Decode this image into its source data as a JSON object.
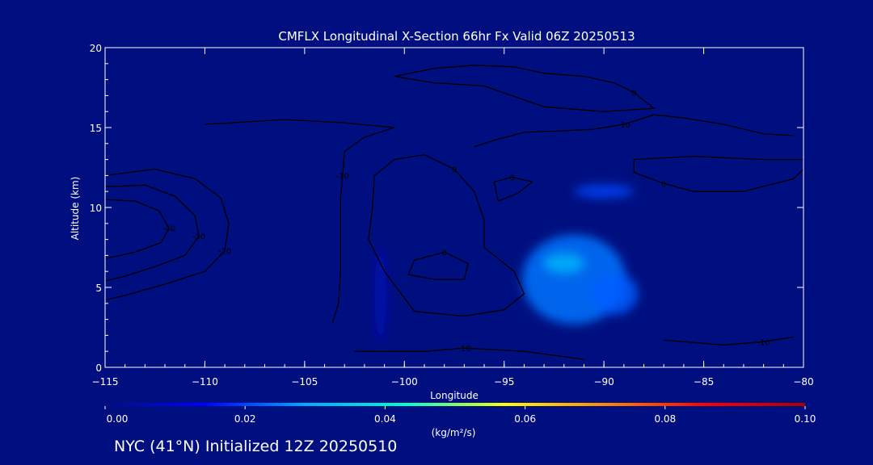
{
  "chart_data": {
    "type": "heatmap",
    "title": "CMFLX Longitudinal X-Section 66hr  Fx Valid 06Z 20250513",
    "xlabel": "Longitude",
    "ylabel": "Altitude (km)",
    "xlim": [
      -115,
      -80
    ],
    "ylim": [
      0,
      20
    ],
    "x_ticks": [
      -115,
      -110,
      -105,
      -100,
      -95,
      -90,
      -85,
      -80
    ],
    "x_tick_labels": [
      "−115",
      "−110",
      "−105",
      "−100",
      "−95",
      "−90",
      "−85",
      "−80"
    ],
    "y_ticks": [
      0,
      5,
      10,
      15,
      20
    ],
    "y_tick_labels": [
      "0",
      "5",
      "10",
      "15",
      "20"
    ],
    "colorbar": {
      "label": "(kg/m²/s)",
      "range": [
        0.0,
        0.1
      ],
      "ticks": [
        0.0,
        0.02,
        0.04,
        0.06,
        0.08,
        0.1
      ],
      "tick_labels": [
        "0.00",
        "0.02",
        "0.04",
        "0.06",
        "0.08",
        "0.10"
      ],
      "colors": [
        "#000f80",
        "#0000ff",
        "#00aaff",
        "#00ffcc",
        "#ffff00",
        "#ff8800",
        "#ff0000",
        "#aa0000"
      ]
    },
    "field_blobs": [
      {
        "lon": -91.5,
        "alt": 5.5,
        "sigma_lon": 2.6,
        "sigma_alt": 2.8,
        "value": 0.024
      },
      {
        "lon": -92.0,
        "alt": 6.5,
        "sigma_lon": 1.0,
        "sigma_alt": 0.6,
        "value": 0.03
      },
      {
        "lon": -89.5,
        "alt": 4.6,
        "sigma_lon": 1.2,
        "sigma_alt": 1.3,
        "value": 0.022
      },
      {
        "lon": -90.0,
        "alt": 11.0,
        "sigma_lon": 1.5,
        "sigma_alt": 0.4,
        "value": 0.02
      },
      {
        "lon": -101.2,
        "alt": 4.5,
        "sigma_lon": 0.3,
        "sigma_alt": 3.0,
        "value": 0.006
      }
    ],
    "contours": [
      {
        "label": "0",
        "points": [
          [
            -99.5,
            3.5
          ],
          [
            -97,
            3.2
          ],
          [
            -95,
            3.6
          ],
          [
            -94,
            4.6
          ],
          [
            -94.5,
            6
          ],
          [
            -96,
            7.5
          ],
          [
            -96,
            9.2
          ],
          [
            -96.5,
            11
          ],
          [
            -97.5,
            12.4
          ],
          [
            -99,
            13.3
          ],
          [
            -100.5,
            13
          ],
          [
            -101.5,
            12
          ],
          [
            -101.6,
            10
          ],
          [
            -101.8,
            8
          ],
          [
            -101,
            6
          ],
          [
            -99.5,
            3.5
          ]
        ]
      },
      {
        "label": "0",
        "points": [
          [
            -82,
            13
          ],
          [
            -79.5,
            13
          ],
          [
            -80.5,
            11.8
          ],
          [
            -83,
            11
          ],
          [
            -85.5,
            11
          ],
          [
            -87,
            11.5
          ],
          [
            -88.5,
            12.2
          ],
          [
            -88.5,
            13
          ],
          [
            -85.5,
            13.2
          ],
          [
            -82,
            13
          ]
        ]
      },
      {
        "label": "0",
        "points": [
          [
            -100.5,
            18.2
          ],
          [
            -98.5,
            18.7
          ],
          [
            -96.5,
            18.9
          ],
          [
            -94.5,
            18.8
          ],
          [
            -93,
            18.4
          ],
          [
            -91,
            18.2
          ],
          [
            -89.5,
            17.8
          ],
          [
            -88.5,
            17.2
          ],
          [
            -87.5,
            16.2
          ],
          [
            -90,
            16
          ],
          [
            -93,
            16.3
          ],
          [
            -96,
            17.6
          ],
          [
            -98.5,
            17.8
          ],
          [
            -100.5,
            18.2
          ]
        ]
      },
      {
        "label": "0",
        "points": [
          [
            -98.5,
            5.5
          ],
          [
            -97,
            5.5
          ],
          [
            -96.8,
            6.5
          ],
          [
            -98,
            7.2
          ],
          [
            -99.5,
            6.7
          ],
          [
            -99.8,
            5.8
          ],
          [
            -98.5,
            5.5
          ]
        ]
      },
      {
        "label": "0",
        "points": [
          [
            -95.3,
            10.4
          ],
          [
            -94.3,
            10.9
          ],
          [
            -93.6,
            11.6
          ],
          [
            -94.6,
            11.9
          ],
          [
            -95.5,
            11.6
          ],
          [
            -95.3,
            10.4
          ]
        ]
      },
      {
        "label": "-10",
        "points": [
          [
            -110,
            15.2
          ],
          [
            -106,
            15.5
          ],
          [
            -103,
            15.3
          ],
          [
            -100.5,
            15
          ],
          [
            -102,
            14.4
          ],
          [
            -103,
            13.5
          ],
          [
            -103.1,
            12
          ],
          [
            -103.2,
            10.5
          ],
          [
            -103.2,
            8.5
          ],
          [
            -103.2,
            6
          ],
          [
            -103.3,
            4
          ],
          [
            -103.6,
            2.8
          ]
        ]
      },
      {
        "label": "-10",
        "points": [
          [
            -102.5,
            1.0
          ],
          [
            -99,
            1.0
          ],
          [
            -97,
            1.2
          ],
          [
            -94,
            1.0
          ],
          [
            -91,
            0.5
          ]
        ]
      },
      {
        "label": "-10",
        "points": [
          [
            -80.5,
            14.5
          ],
          [
            -82,
            14.6
          ],
          [
            -84,
            15.2
          ],
          [
            -86,
            15.6
          ],
          [
            -87.5,
            15.8
          ],
          [
            -89,
            15.2
          ],
          [
            -90.5,
            14.9
          ],
          [
            -92,
            14.8
          ],
          [
            -94,
            14.7
          ],
          [
            -95.5,
            14.2
          ],
          [
            -96.5,
            13.8
          ]
        ]
      },
      {
        "label": "-10",
        "points": [
          [
            -87,
            1.7
          ],
          [
            -84,
            1.4
          ],
          [
            -82,
            1.6
          ],
          [
            -80.5,
            1.9
          ]
        ]
      },
      {
        "label": "-20",
        "points": [
          [
            -115,
            12
          ],
          [
            -112.5,
            12.4
          ],
          [
            -110.5,
            11.8
          ],
          [
            -109.2,
            10.6
          ],
          [
            -108.8,
            9
          ],
          [
            -109,
            7.3
          ],
          [
            -110,
            6
          ],
          [
            -112,
            5.2
          ],
          [
            -114,
            4.5
          ],
          [
            -115,
            4.2
          ]
        ]
      },
      {
        "label": "-30",
        "points": [
          [
            -115,
            11.3
          ],
          [
            -113,
            11.4
          ],
          [
            -111.5,
            10.7
          ],
          [
            -110.5,
            9.5
          ],
          [
            -110.3,
            8.2
          ],
          [
            -111,
            7
          ],
          [
            -112.5,
            6.3
          ],
          [
            -114,
            5.7
          ],
          [
            -115,
            5.4
          ]
        ]
      },
      {
        "label": "-40",
        "points": [
          [
            -115,
            10.5
          ],
          [
            -113.5,
            10.4
          ],
          [
            -112.3,
            9.8
          ],
          [
            -111.8,
            8.7
          ],
          [
            -112.2,
            7.8
          ],
          [
            -113.5,
            7.2
          ],
          [
            -115,
            6.8
          ]
        ]
      }
    ]
  },
  "footer": "NYC (41°N) Initialized 12Z 20250510"
}
